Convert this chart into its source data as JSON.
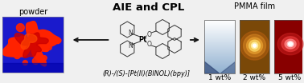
{
  "title": "AIE and CPL",
  "subtitle": "(R)-/(S)-[Pt(II)(BINOL)(bpy)]",
  "left_label": "powder",
  "right_label": "PMMA film",
  "wt_labels": [
    "1 wt%",
    "2 wt%",
    "5 wt%"
  ],
  "bg_color": "#f0f0f0",
  "title_fontsize": 9.5,
  "label_fontsize": 7,
  "subtitle_fontsize": 5.8,
  "wt_fontsize": 6.5,
  "powder_bg": "#1a1acc",
  "struct_color": "#333333",
  "arrow_color": "#111111"
}
